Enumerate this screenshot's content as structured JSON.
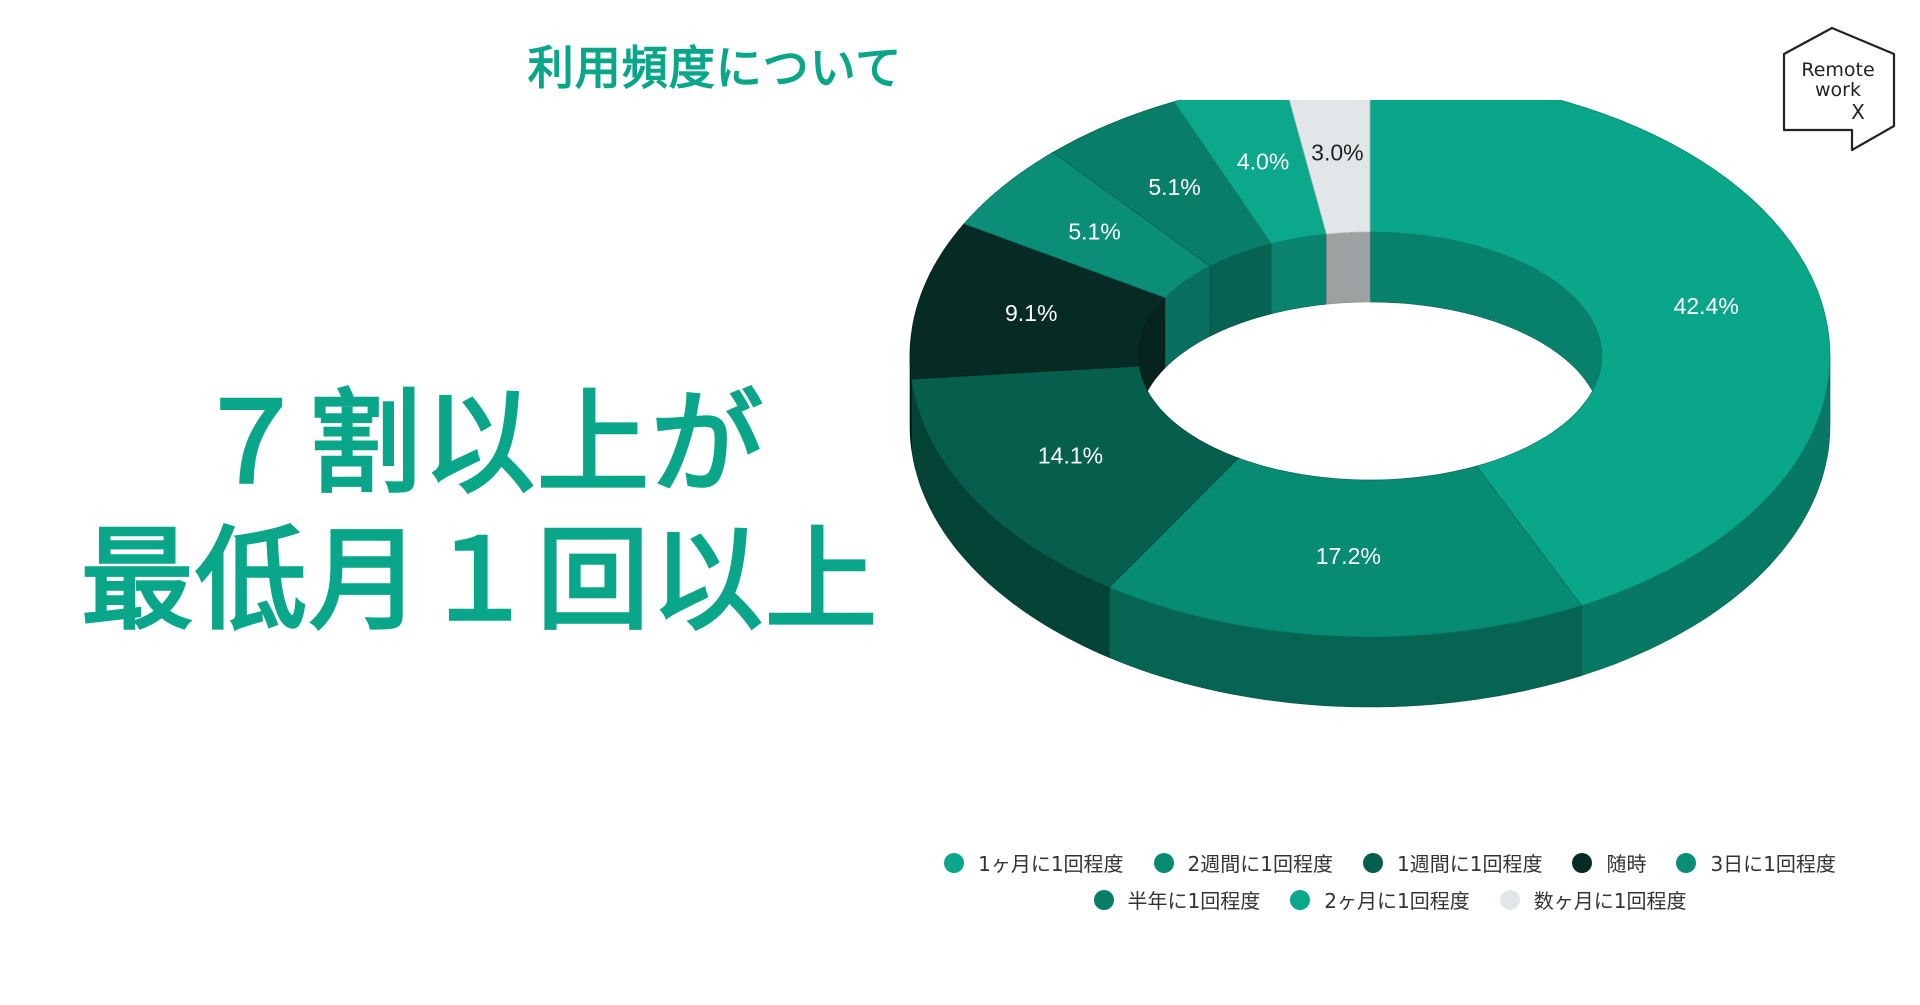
{
  "slide": {
    "title": "利用頻度について",
    "headline_line1": "７割以上が",
    "headline_line2": "最低月１回以上",
    "logo_line1": "Remote",
    "logo_line2": "work",
    "logo_line3": "X"
  },
  "chart_data": {
    "type": "pie",
    "style": "3d-donut",
    "title": "",
    "slices": [
      {
        "label": "1ヶ月に1回程度",
        "value": 42.4,
        "display": "42.4%",
        "color": "#0aa68a",
        "label_color": "#ffffff"
      },
      {
        "label": "2週間に1回程度",
        "value": 17.2,
        "display": "17.2%",
        "color": "#078b72",
        "label_color": "#ffffff"
      },
      {
        "label": "1週間に1回程度",
        "value": 14.1,
        "display": "14.1%",
        "color": "#065e4d",
        "label_color": "#ffffff"
      },
      {
        "label": "随時",
        "value": 9.1,
        "display": "9.1%",
        "color": "#062b25",
        "label_color": "#ffffff"
      },
      {
        "label": "3日に1回程度",
        "value": 5.1,
        "display": "5.1%",
        "color": "#0b8e78",
        "label_color": "#ffffff"
      },
      {
        "label": "半年に1回程度",
        "value": 5.1,
        "display": "5.1%",
        "color": "#087e69",
        "label_color": "#ffffff"
      },
      {
        "label": "2ヶ月に1回程度",
        "value": 4.0,
        "display": "4.0%",
        "color": "#0ba88c",
        "label_color": "#ffffff"
      },
      {
        "label": "数ヶ月に1回程度",
        "value": 3.0,
        "display": "3.0%",
        "color": "#e1e6e8",
        "label_color": "#222222"
      }
    ],
    "legend": {
      "position": "bottom",
      "rows": [
        [
          "1ヶ月に1回程度",
          "2週間に1回程度",
          "1週間に1回程度",
          "随時",
          "3日に1回程度"
        ],
        [
          "半年に1回程度",
          "2ヶ月に1回程度",
          "数ヶ月に1回程度"
        ]
      ]
    }
  }
}
